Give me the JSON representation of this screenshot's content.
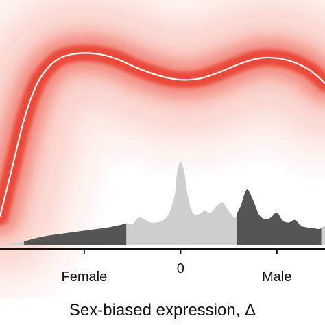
{
  "chart_data": {
    "type": "area",
    "xlabel": "Sex-biased expression, Δ",
    "ylabel": "",
    "xlim": [
      -1.5,
      1.2
    ],
    "grid": false,
    "legend": "none",
    "x_ticks": [
      {
        "value": -0.8,
        "label": "Female"
      },
      {
        "value": 0,
        "label": "0"
      },
      {
        "value": 0.8,
        "label": "Male"
      }
    ],
    "colors": {
      "density_band": "#e8321f",
      "fit_line": "#ffffff",
      "bin_light": "#cfcfcf",
      "bin_dark": "#555555",
      "axis": "#111111"
    },
    "series": [
      {
        "role": "fit_line",
        "x": [
          -1.5,
          -1.4,
          -1.3,
          -1.2,
          -1.1,
          -1.0,
          -0.9,
          -0.8,
          -0.7,
          -0.6,
          -0.5,
          -0.4,
          -0.3,
          -0.2,
          -0.1,
          0.0,
          0.1,
          0.2,
          0.3,
          0.4,
          0.5,
          0.6,
          0.7,
          0.8,
          0.9,
          1.0,
          1.1,
          1.2
        ],
        "y": [
          0.12,
          0.32,
          0.52,
          0.66,
          0.735,
          0.775,
          0.79,
          0.795,
          0.792,
          0.782,
          0.765,
          0.742,
          0.722,
          0.705,
          0.692,
          0.685,
          0.686,
          0.695,
          0.712,
          0.732,
          0.752,
          0.768,
          0.776,
          0.774,
          0.764,
          0.745,
          0.715,
          0.67
        ]
      },
      {
        "role": "density_profile",
        "x": [
          -1.5,
          -1.4,
          -1.3,
          -1.2,
          -1.1,
          -1.0,
          -0.9,
          -0.8,
          -0.7,
          -0.6,
          -0.5,
          -0.45,
          -0.4,
          -0.35,
          -0.3,
          -0.25,
          -0.2,
          -0.15,
          -0.1,
          -0.05,
          -0.03,
          0.0,
          0.03,
          0.06,
          0.1,
          0.15,
          0.2,
          0.25,
          0.3,
          0.35,
          0.4,
          0.45,
          0.5,
          0.55,
          0.6,
          0.65,
          0.7,
          0.75,
          0.8,
          0.85,
          0.9,
          0.95,
          1.0,
          1.05,
          1.1,
          1.15,
          1.2
        ],
        "y": [
          0.0,
          0.01,
          0.025,
          0.045,
          0.06,
          0.07,
          0.08,
          0.09,
          0.1,
          0.11,
          0.125,
          0.135,
          0.13,
          0.17,
          0.16,
          0.14,
          0.14,
          0.15,
          0.19,
          0.3,
          0.44,
          0.51,
          0.45,
          0.3,
          0.2,
          0.19,
          0.21,
          0.2,
          0.24,
          0.26,
          0.21,
          0.17,
          0.24,
          0.34,
          0.28,
          0.19,
          0.16,
          0.17,
          0.2,
          0.15,
          0.14,
          0.155,
          0.12,
          0.11,
          0.105,
          0.1,
          0.12
        ]
      }
    ],
    "bins": [
      {
        "from": -1.5,
        "to": -1.3,
        "shade": "light"
      },
      {
        "from": -1.3,
        "to": -0.45,
        "shade": "dark"
      },
      {
        "from": -0.45,
        "to": 0.47,
        "shade": "light"
      },
      {
        "from": 0.47,
        "to": 1.17,
        "shade": "dark"
      },
      {
        "from": 1.17,
        "to": 1.2,
        "shade": "light"
      }
    ]
  }
}
